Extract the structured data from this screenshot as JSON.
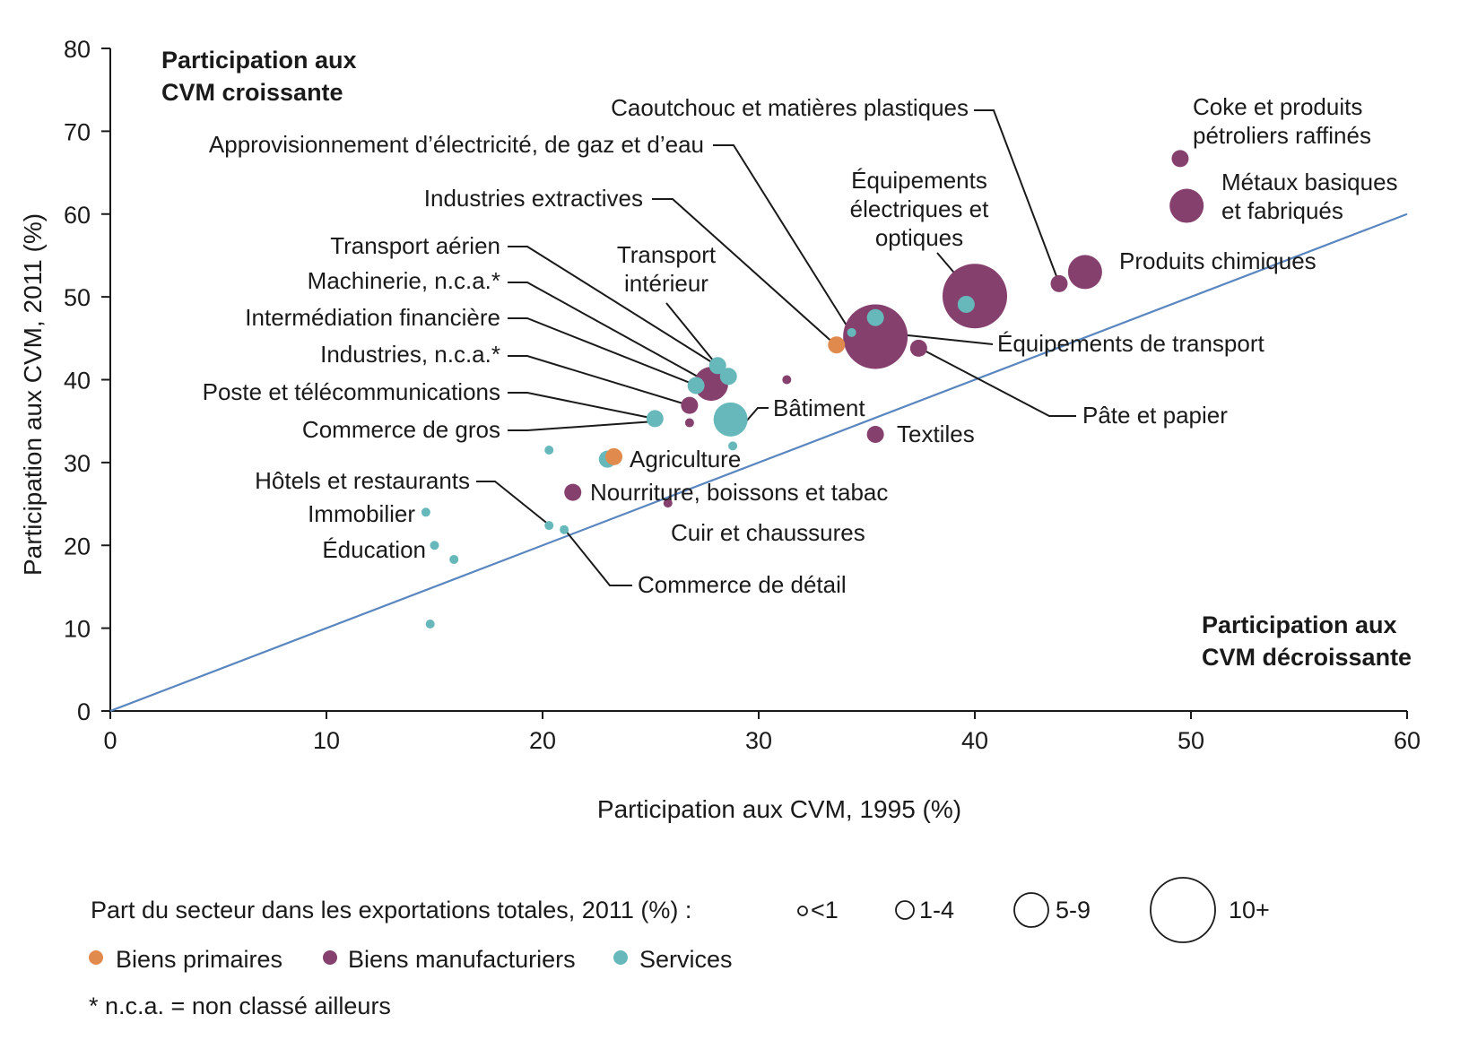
{
  "chart_data": {
    "type": "scatter",
    "subtype": "bubble",
    "xlabel": "Participation aux CVM, 1995 (%)",
    "ylabel": "Participation aux CVM, 2011 (%)",
    "xlim": [
      0,
      60
    ],
    "ylim": [
      0,
      80
    ],
    "xticks": [
      0,
      10,
      20,
      30,
      40,
      50,
      60
    ],
    "yticks": [
      0,
      10,
      20,
      30,
      40,
      50,
      60,
      70,
      80
    ],
    "grid": false,
    "reference_line": {
      "from": [
        0,
        0
      ],
      "to": [
        60,
        60
      ],
      "color": "#5A86C0"
    },
    "annotations": [
      {
        "text": [
          "Participation aux",
          "CVM croissante"
        ],
        "position": "top-left"
      },
      {
        "text": [
          "Participation aux",
          "CVM décroissante"
        ],
        "position": "bottom-right"
      }
    ],
    "colors": {
      "Biens primaires": "#E08A4E",
      "Biens manufacturiers": "#85406E",
      "Services": "#66B8BA"
    },
    "size_legend": {
      "title": "Part du secteur dans les exportations totales, 2011 (%) :",
      "classes": [
        "<1",
        "1-4",
        "5-9",
        "10+"
      ]
    },
    "category_legend": [
      "Biens primaires",
      "Biens manufacturiers",
      "Services"
    ],
    "footnote": "* n.c.a. = non classé ailleurs",
    "points": [
      {
        "label": "Coke et produits pétroliers raffinés",
        "x": 49.5,
        "y": 66.7,
        "group": "Biens manufacturiers",
        "size": "1-4"
      },
      {
        "label": "Métaux basiques et fabriqués",
        "x": 49.8,
        "y": 61.0,
        "group": "Biens manufacturiers",
        "size": "5-9"
      },
      {
        "label": "Produits chimiques",
        "x": 45.1,
        "y": 53.0,
        "group": "Biens manufacturiers",
        "size": "5-9"
      },
      {
        "label": "Caoutchouc et matières plastiques",
        "x": 43.9,
        "y": 51.6,
        "group": "Biens manufacturiers",
        "size": "1-4"
      },
      {
        "label": "Équipements électriques et optiques",
        "x": 40.0,
        "y": 50.1,
        "group": "Biens manufacturiers",
        "size": "10+"
      },
      {
        "label": "",
        "x": 39.6,
        "y": 49.1,
        "group": "Services",
        "size": "1-4"
      },
      {
        "label": "Équipements de transport",
        "x": 35.4,
        "y": 45.2,
        "group": "Biens manufacturiers",
        "size": "10+"
      },
      {
        "label": "",
        "x": 35.4,
        "y": 47.5,
        "group": "Services",
        "size": "1-4"
      },
      {
        "label": "Approvisionnement d'électricité, de gaz et d'eau",
        "x": 34.3,
        "y": 45.7,
        "group": "Services",
        "size": "<1"
      },
      {
        "label": "Industries extractives",
        "x": 33.6,
        "y": 44.2,
        "group": "Biens primaires",
        "size": "1-4"
      },
      {
        "label": "Pâte et papier",
        "x": 37.4,
        "y": 43.8,
        "group": "Biens manufacturiers",
        "size": "1-4"
      },
      {
        "label": "Textiles",
        "x": 35.4,
        "y": 33.4,
        "group": "Biens manufacturiers",
        "size": "1-4"
      },
      {
        "label": "",
        "x": 31.3,
        "y": 40.0,
        "group": "Biens manufacturiers",
        "size": "<1"
      },
      {
        "label": "Machinerie, n.c.a.*",
        "x": 27.8,
        "y": 39.5,
        "group": "Biens manufacturiers",
        "size": "5-9"
      },
      {
        "label": "Transport aérien",
        "x": 28.1,
        "y": 41.7,
        "group": "Services",
        "size": "1-4"
      },
      {
        "label": "Transport intérieur",
        "x": 28.6,
        "y": 40.4,
        "group": "Services",
        "size": "1-4"
      },
      {
        "label": "Intermédiation financière",
        "x": 27.1,
        "y": 39.3,
        "group": "Services",
        "size": "1-4"
      },
      {
        "label": "Industries, n.c.a.*",
        "x": 26.8,
        "y": 36.9,
        "group": "Biens manufacturiers",
        "size": "1-4"
      },
      {
        "label": "",
        "x": 26.8,
        "y": 34.8,
        "group": "Biens manufacturiers",
        "size": "<1"
      },
      {
        "label": "Poste et télécommunications",
        "x": 25.2,
        "y": 35.3,
        "group": "Services",
        "size": "1-4"
      },
      {
        "label": "Bâtiment",
        "x": 28.7,
        "y": 35.2,
        "group": "Services",
        "size": "5-9"
      },
      {
        "label": "",
        "x": 28.8,
        "y": 32.0,
        "group": "Services",
        "size": "<1"
      },
      {
        "label": "",
        "x": 20.3,
        "y": 31.5,
        "group": "Services",
        "size": "<1"
      },
      {
        "label": "",
        "x": 23.0,
        "y": 30.4,
        "group": "Services",
        "size": "1-4"
      },
      {
        "label": "Agriculture",
        "x": 23.3,
        "y": 30.7,
        "group": "Biens primaires",
        "size": "1-4"
      },
      {
        "label": "Nourriture, boissons et tabac",
        "x": 21.4,
        "y": 26.4,
        "group": "Biens manufacturiers",
        "size": "1-4"
      },
      {
        "label": "Cuir et chaussures",
        "x": 25.8,
        "y": 25.1,
        "group": "Biens manufacturiers",
        "size": "<1"
      },
      {
        "label": "Hôtels et restaurants",
        "x": 20.3,
        "y": 22.4,
        "group": "Services",
        "size": "<1"
      },
      {
        "label": "Commerce de détail",
        "x": 21.0,
        "y": 21.9,
        "group": "Services",
        "size": "<1"
      },
      {
        "label": "Immobilier",
        "x": 14.6,
        "y": 24.0,
        "group": "Services",
        "size": "<1"
      },
      {
        "label": "Éducation",
        "x": 15.0,
        "y": 20.0,
        "group": "Services",
        "size": "<1"
      },
      {
        "label": "",
        "x": 15.9,
        "y": 18.3,
        "group": "Services",
        "size": "<1"
      },
      {
        "label": "",
        "x": 14.8,
        "y": 10.5,
        "group": "Services",
        "size": "<1"
      }
    ]
  },
  "labels": {
    "coke1": "Coke et produits",
    "coke2": "pétroliers raffinés",
    "metaux1": "Métaux basiques",
    "metaux2": "et fabriqués",
    "chimiques": "Produits chimiques",
    "caoutchouc": "Caoutchouc et matières plastiques",
    "elec1": "Équipements",
    "elec2": "électriques et",
    "elec3": "optiques",
    "transport_eq": "Équipements de transport",
    "electricite": "Approvisionnement d’électricité, de gaz et d’eau",
    "extractives": "Industries extractives",
    "pate": "Pâte et papier",
    "textiles": "Textiles",
    "aerien": "Transport aérien",
    "machinerie": "Machinerie, n.c.a.*",
    "interm": "Intermédiation financière",
    "industries": "Industries, n.c.a.*",
    "poste": "Poste et télécommunications",
    "gros": "Commerce de gros",
    "interieur1": "Transport",
    "interieur2": "intérieur",
    "batiment": "Bâtiment",
    "agriculture": "Agriculture",
    "nourriture": "Nourriture, boissons et tabac",
    "cuir": "Cuir et chaussures",
    "hotels": "Hôtels et restaurants",
    "immobilier": "Immobilier",
    "education": "Éducation",
    "detail": "Commerce de détail",
    "up1": "Participation aux",
    "up2": "CVM croissante",
    "down1": "Participation aux",
    "down2": "CVM décroissante"
  }
}
